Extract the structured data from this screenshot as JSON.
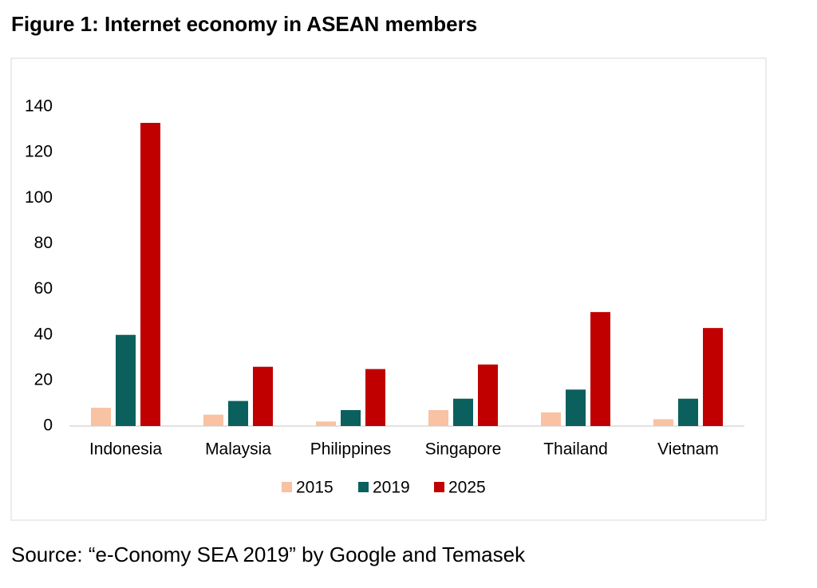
{
  "chart_data": {
    "type": "bar",
    "title": "Figure 1: Internet economy in ASEAN members",
    "source": "Source: “e-Conomy SEA 2019” by Google and Temasek",
    "categories": [
      "Indonesia",
      "Malaysia",
      "Philippines",
      "Singapore",
      "Thailand",
      "Vietnam"
    ],
    "series": [
      {
        "name": "2015",
        "color": "#f8c2a3",
        "values": [
          8,
          5,
          2,
          7,
          6,
          3
        ]
      },
      {
        "name": "2019",
        "color": "#0b605e",
        "values": [
          40,
          11,
          7,
          12,
          16,
          12
        ]
      },
      {
        "name": "2025",
        "color": "#c00000",
        "values": [
          133,
          26,
          25,
          27,
          50,
          43
        ]
      }
    ],
    "ylim": [
      0,
      140
    ],
    "yticks": [
      0,
      20,
      40,
      60,
      80,
      100,
      120,
      140
    ],
    "grid": false,
    "legend": "bottom"
  }
}
